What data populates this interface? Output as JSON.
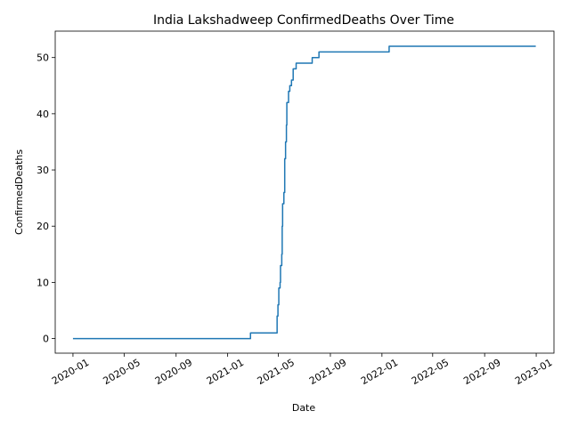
{
  "chart_data": {
    "type": "line",
    "title": "India Lakshadweep ConfirmedDeaths Over Time",
    "xlabel": "Date",
    "ylabel": "ConfirmedDeaths",
    "x_ticks": [
      "2020-01",
      "2020-05",
      "2020-09",
      "2021-01",
      "2021-05",
      "2021-09",
      "2022-01",
      "2022-05",
      "2022-09",
      "2023-01"
    ],
    "y_ticks": [
      0,
      10,
      20,
      30,
      40,
      50
    ],
    "xlim": [
      "2019-11-20",
      "2023-02-12"
    ],
    "ylim": [
      -2.6,
      54.7
    ],
    "grid": false,
    "line_style": "steps-post",
    "series": [
      {
        "color": "#1f77b4",
        "points": [
          [
            "2020-01-01",
            0
          ],
          [
            "2021-02-23",
            0
          ],
          [
            "2021-02-24",
            1
          ],
          [
            "2021-04-27",
            1
          ],
          [
            "2021-04-28",
            4
          ],
          [
            "2021-04-30",
            6
          ],
          [
            "2021-05-02",
            9
          ],
          [
            "2021-05-05",
            10
          ],
          [
            "2021-05-06",
            13
          ],
          [
            "2021-05-09",
            15
          ],
          [
            "2021-05-10",
            20
          ],
          [
            "2021-05-11",
            24
          ],
          [
            "2021-05-14",
            26
          ],
          [
            "2021-05-16",
            32
          ],
          [
            "2021-05-18",
            35
          ],
          [
            "2021-05-20",
            38
          ],
          [
            "2021-05-21",
            42
          ],
          [
            "2021-05-25",
            44
          ],
          [
            "2021-05-28",
            45
          ],
          [
            "2021-06-01",
            46
          ],
          [
            "2021-06-05",
            48
          ],
          [
            "2021-06-12",
            49
          ],
          [
            "2021-07-20",
            50
          ],
          [
            "2021-08-05",
            51
          ],
          [
            "2022-01-18",
            52
          ],
          [
            "2022-12-31",
            52
          ]
        ]
      }
    ]
  }
}
